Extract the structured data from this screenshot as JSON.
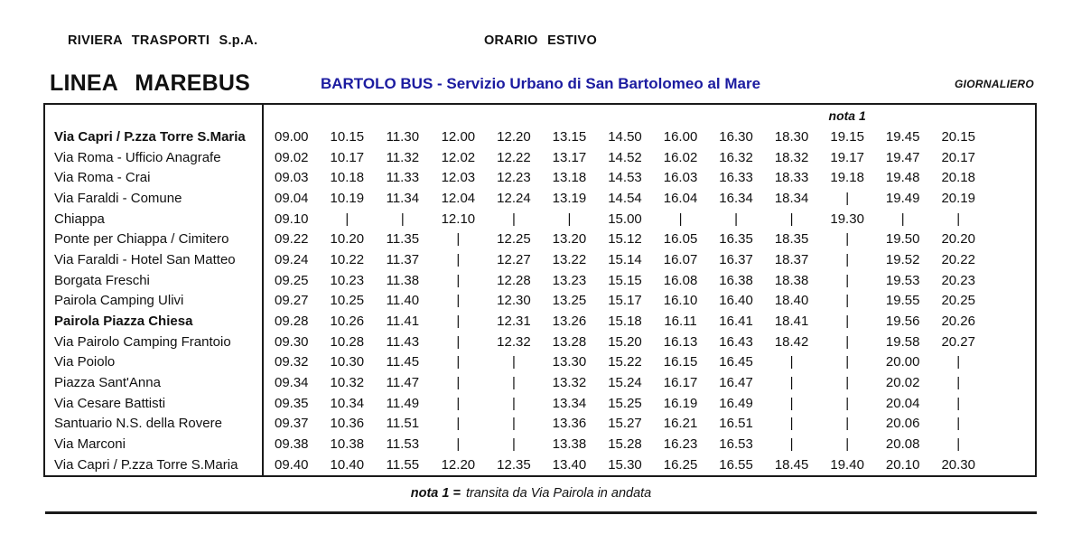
{
  "header": {
    "company": "RIVIERA  TRASPORTI  S.p.A.",
    "season": "ORARIO  ESTIVO",
    "line_name": "LINEA  MAREBUS",
    "service_title": "BARTOLO BUS - Servizio Urbano di San Bartolomeo al Mare",
    "frequency": "GIORNALIERO",
    "accent_color": "#1b1ba0"
  },
  "table": {
    "note_header": "nota 1",
    "note_column": 11,
    "skip_symbol": "|",
    "rows": [
      {
        "stop": "Via Capri / P.zza Torre S.Maria",
        "bold": true,
        "times": [
          "09.00",
          "10.15",
          "11.30",
          "12.00",
          "12.20",
          "13.15",
          "14.50",
          "16.00",
          "16.30",
          "18.30",
          "19.15",
          "19.45",
          "20.15"
        ]
      },
      {
        "stop": "Via Roma - Ufficio Anagrafe",
        "bold": false,
        "times": [
          "09.02",
          "10.17",
          "11.32",
          "12.02",
          "12.22",
          "13.17",
          "14.52",
          "16.02",
          "16.32",
          "18.32",
          "19.17",
          "19.47",
          "20.17"
        ]
      },
      {
        "stop": "Via Roma - Crai",
        "bold": false,
        "times": [
          "09.03",
          "10.18",
          "11.33",
          "12.03",
          "12.23",
          "13.18",
          "14.53",
          "16.03",
          "16.33",
          "18.33",
          "19.18",
          "19.48",
          "20.18"
        ]
      },
      {
        "stop": "Via Faraldi - Comune",
        "bold": false,
        "times": [
          "09.04",
          "10.19",
          "11.34",
          "12.04",
          "12.24",
          "13.19",
          "14.54",
          "16.04",
          "16.34",
          "18.34",
          "|",
          "19.49",
          "20.19"
        ]
      },
      {
        "stop": "Chiappa",
        "bold": false,
        "times": [
          "09.10",
          "|",
          "|",
          "12.10",
          "|",
          "|",
          "15.00",
          "|",
          "|",
          "|",
          "19.30",
          "|",
          "|"
        ]
      },
      {
        "stop": "Ponte per Chiappa / Cimitero",
        "bold": false,
        "times": [
          "09.22",
          "10.20",
          "11.35",
          "|",
          "12.25",
          "13.20",
          "15.12",
          "16.05",
          "16.35",
          "18.35",
          "|",
          "19.50",
          "20.20"
        ]
      },
      {
        "stop": "Via Faraldi - Hotel San Matteo",
        "bold": false,
        "times": [
          "09.24",
          "10.22",
          "11.37",
          "|",
          "12.27",
          "13.22",
          "15.14",
          "16.07",
          "16.37",
          "18.37",
          "|",
          "19.52",
          "20.22"
        ]
      },
      {
        "stop": "Borgata Freschi",
        "bold": false,
        "times": [
          "09.25",
          "10.23",
          "11.38",
          "|",
          "12.28",
          "13.23",
          "15.15",
          "16.08",
          "16.38",
          "18.38",
          "|",
          "19.53",
          "20.23"
        ]
      },
      {
        "stop": "Pairola Camping Ulivi",
        "bold": false,
        "times": [
          "09.27",
          "10.25",
          "11.40",
          "|",
          "12.30",
          "13.25",
          "15.17",
          "16.10",
          "16.40",
          "18.40",
          "|",
          "19.55",
          "20.25"
        ]
      },
      {
        "stop": "Pairola Piazza Chiesa",
        "bold": true,
        "times": [
          "09.28",
          "10.26",
          "11.41",
          "|",
          "12.31",
          "13.26",
          "15.18",
          "16.11",
          "16.41",
          "18.41",
          "|",
          "19.56",
          "20.26"
        ]
      },
      {
        "stop": "Via Pairolo Camping Frantoio",
        "bold": false,
        "times": [
          "09.30",
          "10.28",
          "11.43",
          "|",
          "12.32",
          "13.28",
          "15.20",
          "16.13",
          "16.43",
          "18.42",
          "|",
          "19.58",
          "20.27"
        ]
      },
      {
        "stop": "Via Poiolo",
        "bold": false,
        "times": [
          "09.32",
          "10.30",
          "11.45",
          "|",
          "|",
          "13.30",
          "15.22",
          "16.15",
          "16.45",
          "|",
          "|",
          "20.00",
          "|"
        ]
      },
      {
        "stop": "Piazza Sant'Anna",
        "bold": false,
        "times": [
          "09.34",
          "10.32",
          "11.47",
          "|",
          "|",
          "13.32",
          "15.24",
          "16.17",
          "16.47",
          "|",
          "|",
          "20.02",
          "|"
        ]
      },
      {
        "stop": "Via Cesare Battisti",
        "bold": false,
        "times": [
          "09.35",
          "10.34",
          "11.49",
          "|",
          "|",
          "13.34",
          "15.25",
          "16.19",
          "16.49",
          "|",
          "|",
          "20.04",
          "|"
        ]
      },
      {
        "stop": "Santuario N.S. della Rovere",
        "bold": false,
        "times": [
          "09.37",
          "10.36",
          "11.51",
          "|",
          "|",
          "13.36",
          "15.27",
          "16.21",
          "16.51",
          "|",
          "|",
          "20.06",
          "|"
        ]
      },
      {
        "stop": "Via Marconi",
        "bold": false,
        "times": [
          "09.38",
          "10.38",
          "11.53",
          "|",
          "|",
          "13.38",
          "15.28",
          "16.23",
          "16.53",
          "|",
          "|",
          "20.08",
          "|"
        ]
      },
      {
        "stop": "Via Capri / P.zza Torre S.Maria",
        "bold": false,
        "times": [
          "09.40",
          "10.40",
          "11.55",
          "12.20",
          "12.35",
          "13.40",
          "15.30",
          "16.25",
          "16.55",
          "18.45",
          "19.40",
          "20.10",
          "20.30"
        ]
      }
    ]
  },
  "footer": {
    "note_label": "nota 1 =",
    "note_text": "transita da Via Pairola in andata"
  }
}
